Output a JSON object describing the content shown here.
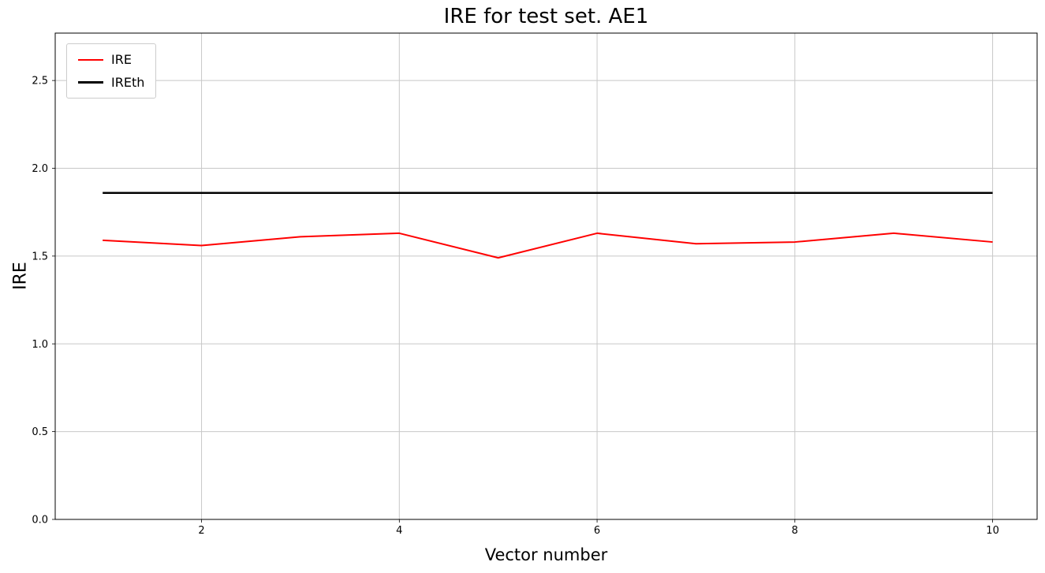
{
  "chart_data": {
    "type": "line",
    "title": "IRE for test set. AE1",
    "xlabel": "Vector number",
    "ylabel": "IRE",
    "x": [
      1,
      2,
      3,
      4,
      5,
      6,
      7,
      8,
      9,
      10
    ],
    "series": [
      {
        "name": "IRE",
        "color": "#ff0000",
        "linewidth": 2,
        "values": [
          1.59,
          1.56,
          1.61,
          1.63,
          1.49,
          1.63,
          1.57,
          1.58,
          1.63,
          1.58
        ]
      },
      {
        "name": "IREth",
        "color": "#000000",
        "linewidth": 2.5,
        "values": [
          1.86,
          1.86,
          1.86,
          1.86,
          1.86,
          1.86,
          1.86,
          1.86,
          1.86,
          1.86
        ]
      }
    ],
    "xlim": [
      0.52,
      10.45
    ],
    "ylim": [
      0,
      2.77
    ],
    "xticks": [
      2,
      4,
      6,
      8,
      10
    ],
    "xtick_labels": [
      "2",
      "4",
      "6",
      "8",
      "10"
    ],
    "yticks": [
      0.0,
      0.5,
      1.0,
      1.5,
      2.0,
      2.5
    ],
    "ytick_labels": [
      "0.0",
      "0.5",
      "1.0",
      "1.5",
      "2.0",
      "2.5"
    ],
    "grid": true,
    "grid_color": "#c8c8c8",
    "legend_position": "upper left"
  }
}
